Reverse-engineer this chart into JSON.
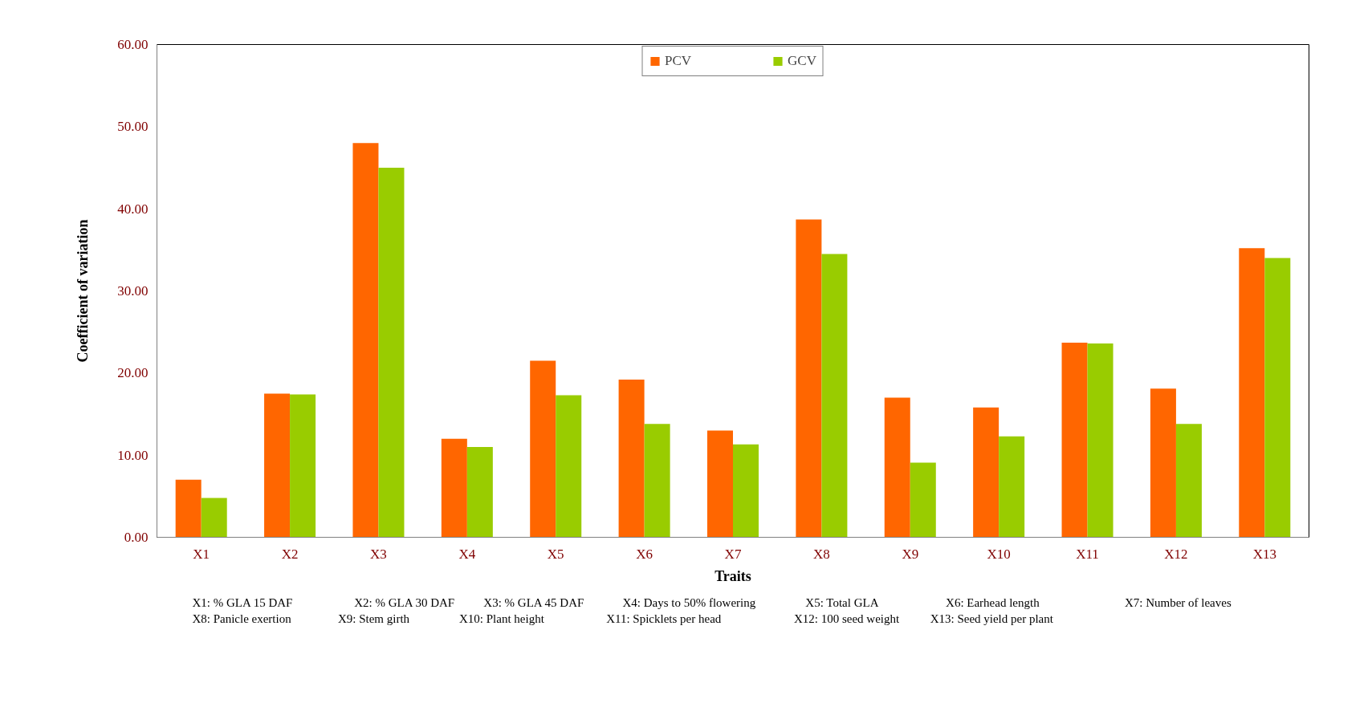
{
  "chart_data": {
    "type": "bar",
    "xlabel": "Traits",
    "ylabel": "Coefficient of variation",
    "categories": [
      "X1",
      "X2",
      "X3",
      "X4",
      "X5",
      "X6",
      "X7",
      "X8",
      "X9",
      "X10",
      "X11",
      "X12",
      "X13"
    ],
    "series": [
      {
        "name": "PCV",
        "color": "#ff6600",
        "values": [
          7.0,
          17.5,
          48.0,
          12.0,
          21.5,
          19.2,
          13.0,
          38.7,
          17.0,
          15.8,
          23.7,
          18.1,
          35.2
        ]
      },
      {
        "name": "GCV",
        "color": "#99cc00",
        "values": [
          4.8,
          17.4,
          45.0,
          11.0,
          17.3,
          13.8,
          11.3,
          34.5,
          9.1,
          12.3,
          23.6,
          13.8,
          34.0
        ]
      }
    ],
    "ylim": [
      0,
      60
    ],
    "yticks": [
      {
        "value": 0,
        "label": "0.00"
      },
      {
        "value": 10,
        "label": "10.00"
      },
      {
        "value": 20,
        "label": "20.00"
      },
      {
        "value": 30,
        "label": "30.00"
      },
      {
        "value": 40,
        "label": "40.00"
      },
      {
        "value": 50,
        "label": "50.00"
      },
      {
        "value": 60,
        "label": "60.00"
      }
    ],
    "grid": false,
    "legend": "top",
    "annotations": [
      "X1: % GLA 15 DAF",
      "X2: % GLA 30 DAF",
      "X3: % GLA 45 DAF",
      "X4: Days to 50% flowering",
      "X5: Total GLA",
      "X6: Earhead length",
      "X7: Number of leaves",
      "X8: Panicle exertion",
      "X9: Stem girth",
      "X10: Plant height",
      "X11: Spicklets per head",
      "X12: 100 seed weight",
      "X13: Seed yield per plant"
    ]
  }
}
